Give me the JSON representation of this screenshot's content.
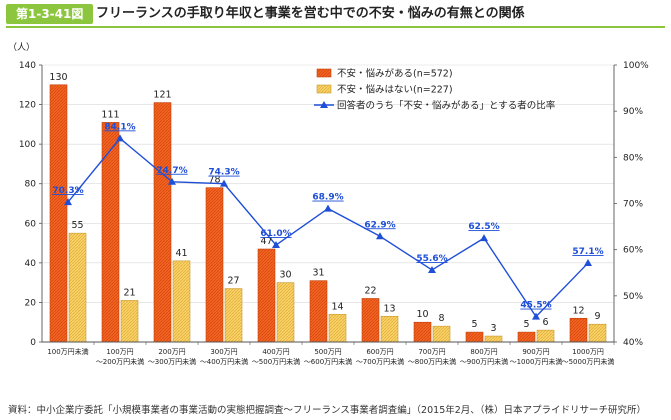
{
  "header": {
    "figure_number": "第1-3-41図",
    "title": "フリーランスの手取り年収と事業を営む中での不安・悩みの有無との関係"
  },
  "chart_data": {
    "type": "bar+line",
    "title": "フリーランスの手取り年収と事業を営む中での不安・悩みの有無との関係",
    "y_unit_label": "（人）",
    "ylim": [
      0,
      140
    ],
    "y_ticks": [
      "0",
      "20",
      "40",
      "60",
      "80",
      "100",
      "120",
      "140"
    ],
    "y2lim": [
      40,
      100
    ],
    "y2_ticks": [
      "40%",
      "50%",
      "60%",
      "70%",
      "80%",
      "90%",
      "100%"
    ],
    "categories": [
      [
        "100万円未満"
      ],
      [
        "100万円",
        "～200万円未満"
      ],
      [
        "200万円",
        "～300万円未満"
      ],
      [
        "300万円",
        "～400万円未満"
      ],
      [
        "400万円",
        "～500万円未満"
      ],
      [
        "500万円",
        "～600万円未満"
      ],
      [
        "600万円",
        "～700万円未満"
      ],
      [
        "700万円",
        "～800万円未満"
      ],
      [
        "800万円",
        "～900万円未満"
      ],
      [
        "900万円",
        "～1000万円未満"
      ],
      [
        "1000万円",
        "～5000万円未満"
      ]
    ],
    "series": [
      {
        "name": "不安・悩みがある(n=572)",
        "type": "bar",
        "color": "#f26522",
        "values": [
          130,
          111,
          121,
          78,
          47,
          31,
          22,
          10,
          5,
          5,
          12
        ]
      },
      {
        "name": "不安・悩みはない(n=227)",
        "type": "bar",
        "color": "#fbd36a",
        "values": [
          55,
          21,
          41,
          27,
          30,
          14,
          13,
          8,
          3,
          6,
          9
        ]
      },
      {
        "name": "回答者のうち「不安・悩みがある」とする者の比率",
        "type": "line",
        "axis": "right",
        "color": "#1f4fd8",
        "values": [
          70.3,
          84.1,
          74.7,
          74.3,
          61.0,
          68.9,
          62.9,
          55.6,
          62.5,
          45.5,
          57.1
        ],
        "labels": [
          "70.3%",
          "84.1%",
          "74.7%",
          "74.3%",
          "61.0%",
          "68.9%",
          "62.9%",
          "55.6%",
          "62.5%",
          "45.5%",
          "57.1%"
        ]
      }
    ]
  },
  "source": "資料：中小企業庁委託「小規模事業者の事業活動の実態把握調査～フリーランス事業者調査編」（2015年2月、（株）日本アプライドリサーチ研究所）"
}
